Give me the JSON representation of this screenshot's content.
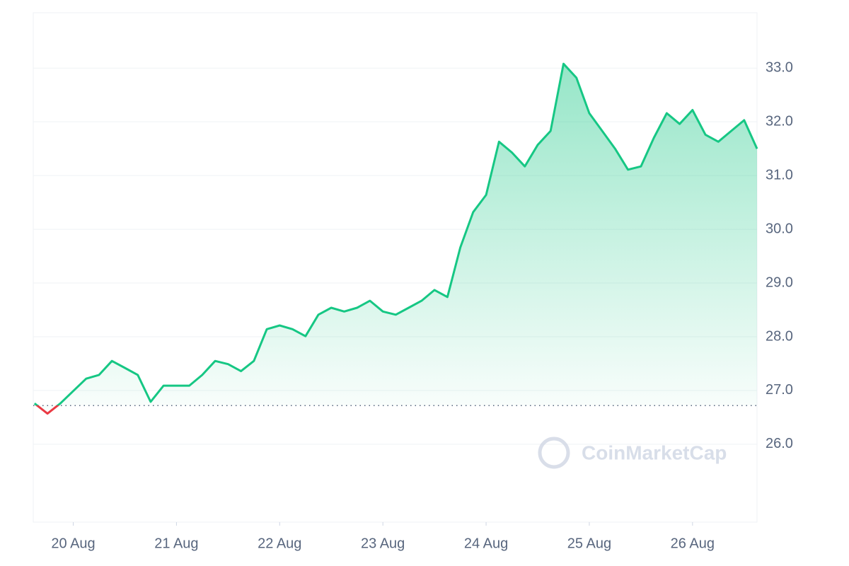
{
  "chart_data": {
    "type": "line",
    "watermark": "CoinMarketCap",
    "values": [
      26.76,
      26.57,
      26.76,
      26.99,
      27.22,
      27.29,
      27.55,
      27.42,
      27.29,
      26.79,
      27.09,
      27.09,
      27.09,
      27.29,
      27.55,
      27.49,
      27.36,
      27.55,
      28.14,
      28.21,
      28.14,
      28.01,
      28.41,
      28.54,
      28.47,
      28.54,
      28.67,
      28.47,
      28.41,
      28.54,
      28.67,
      28.87,
      28.74,
      29.66,
      30.32,
      30.64,
      31.63,
      31.43,
      31.17,
      31.57,
      31.83,
      33.08,
      32.82,
      32.16,
      31.83,
      31.5,
      31.11,
      31.17,
      31.7,
      32.16,
      31.96,
      32.22,
      31.76,
      31.63,
      31.83,
      32.03,
      31.5
    ],
    "color": "#16c784",
    "below_color": "#ea3943",
    "baseline": 26.72,
    "xlim": [
      -0.1,
      56
    ],
    "xticks": [
      {
        "value": 3,
        "label": "20 Aug"
      },
      {
        "value": 11,
        "label": "21 Aug"
      },
      {
        "value": 19,
        "label": "22 Aug"
      },
      {
        "value": 27,
        "label": "23 Aug"
      },
      {
        "value": 35,
        "label": "24 Aug"
      },
      {
        "value": 43,
        "label": "25 Aug"
      },
      {
        "value": 51,
        "label": "26 Aug"
      }
    ],
    "ylim": [
      24.55,
      34.03
    ],
    "yticks": [
      {
        "value": 26,
        "label": "26.0"
      },
      {
        "value": 27,
        "label": "27.0"
      },
      {
        "value": 28,
        "label": "28.0"
      },
      {
        "value": 29,
        "label": "29.0"
      },
      {
        "value": 30,
        "label": "30.0"
      },
      {
        "value": 31,
        "label": "31.0"
      },
      {
        "value": 32,
        "label": "32.0"
      },
      {
        "value": 33,
        "label": "33.0"
      }
    ],
    "grid": true
  }
}
